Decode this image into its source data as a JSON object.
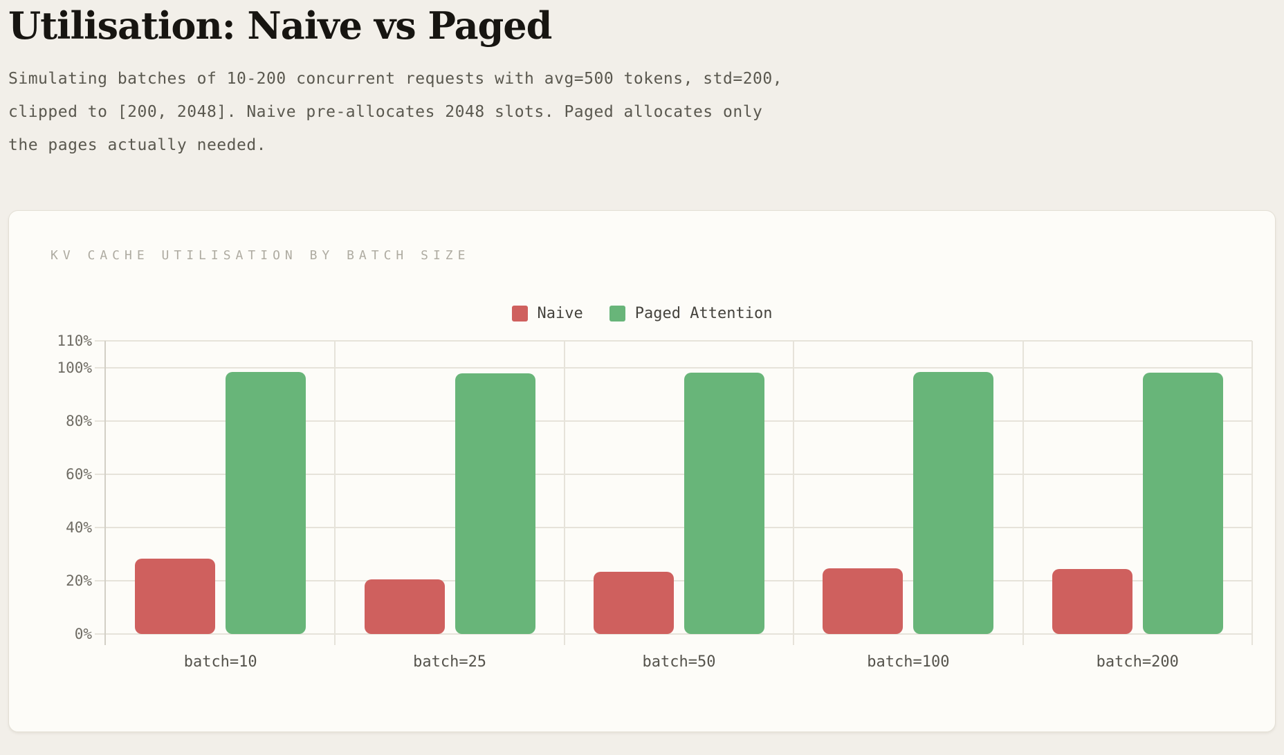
{
  "header": {
    "title": "Utilisation: Naive vs Paged",
    "subtitle_lines": [
      "Simulating batches of 10-200 concurrent requests with avg=500 tokens, std=200,",
      "clipped to [200, 2048]. Naive pre-allocates 2048 slots. Paged allocates only",
      "the pages actually needed."
    ]
  },
  "chart_data": {
    "type": "bar",
    "title": "KV CACHE UTILISATION BY BATCH SIZE",
    "categories": [
      "batch=10",
      "batch=25",
      "batch=50",
      "batch=100",
      "batch=200"
    ],
    "series": [
      {
        "name": "Naive",
        "color": "#cf605e",
        "values": [
          28.3,
          20.6,
          23.3,
          24.6,
          24.4
        ]
      },
      {
        "name": "Paged Attention",
        "color": "#68b579",
        "values": [
          98.4,
          97.9,
          98.2,
          98.3,
          98.2
        ]
      }
    ],
    "xlabel": "",
    "ylabel": "",
    "ylim": [
      0,
      110
    ],
    "yticks": [
      0,
      20,
      40,
      60,
      80,
      100,
      110
    ],
    "ytick_labels": [
      "0%",
      "20%",
      "40%",
      "60%",
      "80%",
      "100%",
      "110%"
    ],
    "legend_position": "top-center",
    "grid": true
  },
  "colors": {
    "page_bg": "#f2efe9",
    "card_bg": "#fdfcf8",
    "naive_red": "#cf605e",
    "paged_green": "#68b579"
  }
}
